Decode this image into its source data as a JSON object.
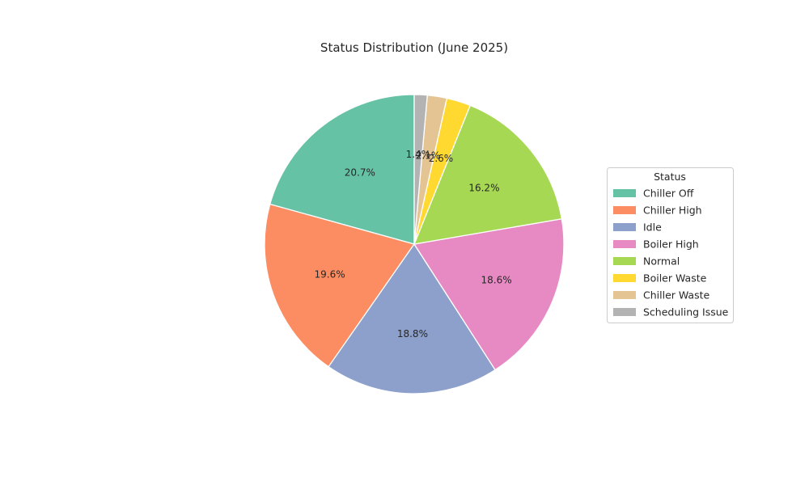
{
  "chart_data": {
    "type": "pie",
    "title": "Status Distribution (June 2025)",
    "legend_title": "Status",
    "legend_position": "center-right",
    "start_angle_deg": 90,
    "direction": "counterclockwise",
    "categories": [
      "Chiller Off",
      "Chiller High",
      "Idle",
      "Boiler High",
      "Normal",
      "Boiler Waste",
      "Chiller Waste",
      "Scheduling Issue"
    ],
    "values": [
      20.7,
      19.6,
      18.8,
      18.6,
      16.2,
      2.6,
      2.1,
      1.4
    ],
    "labels": [
      "20.7%",
      "19.6%",
      "18.8%",
      "18.6%",
      "16.2%",
      "2.6%",
      "2.1%",
      "1.4%"
    ],
    "colors": [
      "#66c2a5",
      "#fc8d62",
      "#8da0cb",
      "#e78ac3",
      "#a6d854",
      "#ffd92f",
      "#e5c494",
      "#b3b3b3"
    ]
  }
}
